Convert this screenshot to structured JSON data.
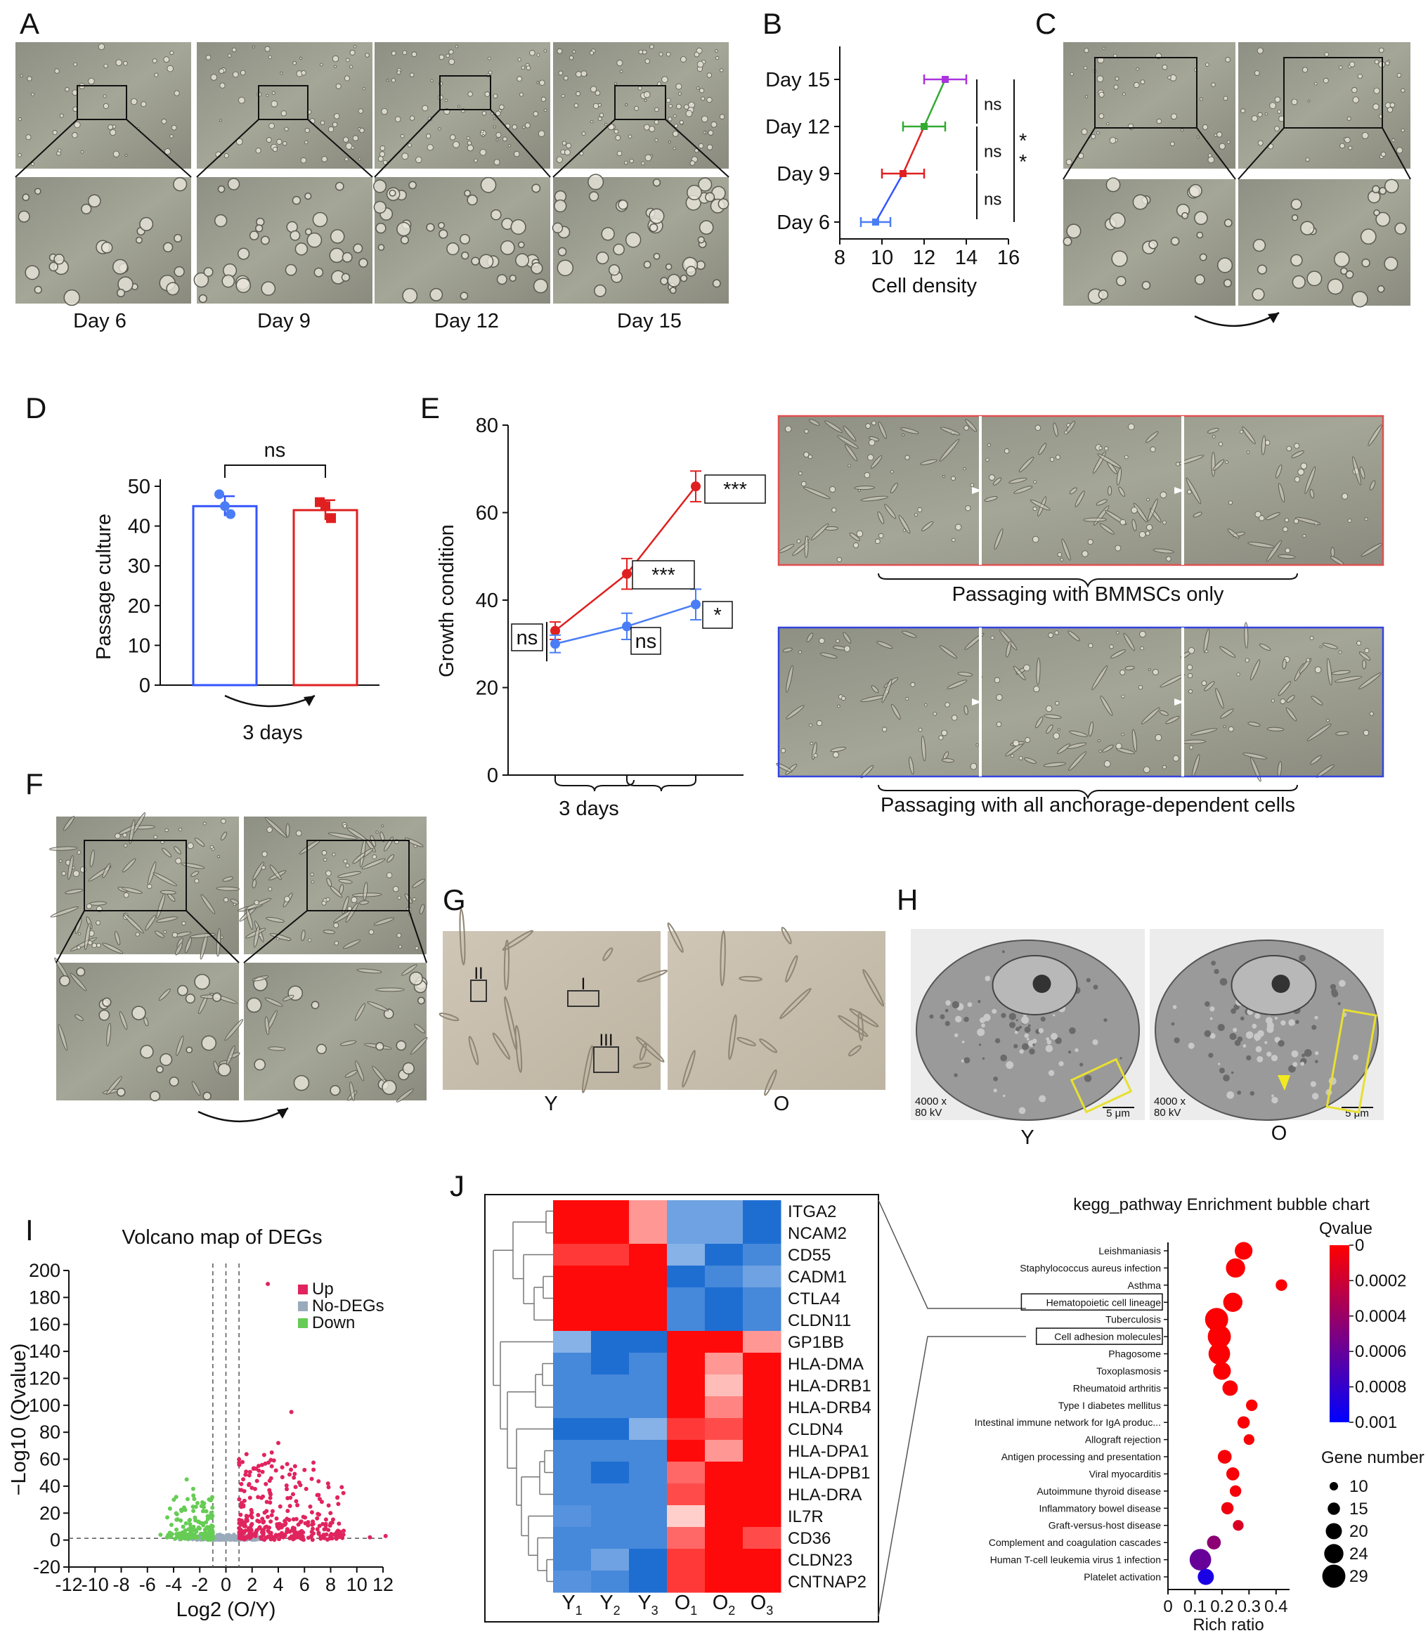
{
  "panels": {
    "A": {
      "label": "A",
      "captions": [
        "Day 6",
        "Day 9",
        "Day 12",
        "Day 15"
      ]
    },
    "B": {
      "label": "B"
    },
    "C": {
      "label": "C"
    },
    "D": {
      "label": "D"
    },
    "E": {
      "label": "E",
      "legend_red": "Passaging with BMMSCs only",
      "legend_blue": "Passaging with all anchorage-dependent cells"
    },
    "F": {
      "label": "F"
    },
    "G": {
      "label": "G",
      "captions": [
        "Y",
        "O"
      ],
      "boxes": [
        "II",
        "I",
        "III"
      ]
    },
    "H": {
      "label": "H",
      "captions": [
        "Y",
        "O"
      ],
      "mag": "4000 x",
      "kv": "80 kV",
      "scale": "5 μm"
    },
    "I": {
      "label": "I"
    },
    "J": {
      "label": "J"
    }
  },
  "chart_data": [
    {
      "id": "B",
      "type": "scatter",
      "xlabel": "Cell density",
      "ylabel": "",
      "xlim": [
        8,
        16
      ],
      "xticks": [
        8,
        10,
        12,
        14,
        16
      ],
      "categories": [
        "Day 6",
        "Day 9",
        "Day 12",
        "Day 15"
      ],
      "points": [
        {
          "category": "Day 6",
          "x": 9.7,
          "err": 0.7,
          "color": "#4a7df5"
        },
        {
          "category": "Day 9",
          "x": 11.0,
          "err": 1.0,
          "color": "#e02020"
        },
        {
          "category": "Day 12",
          "x": 12.0,
          "err": 1.0,
          "color": "#33aa33"
        },
        {
          "category": "Day 15",
          "x": 13.0,
          "err": 1.0,
          "color": "#aa33dd"
        }
      ],
      "segments": [
        {
          "from": "Day 6",
          "to": "Day 9",
          "color": "#3355ff"
        },
        {
          "from": "Day 9",
          "to": "Day 12",
          "color": "#e02020"
        },
        {
          "from": "Day 12",
          "to": "Day 15",
          "color": "#33aa33"
        }
      ],
      "annotations": [
        "ns",
        "ns",
        "ns",
        "**"
      ]
    },
    {
      "id": "D",
      "type": "bar",
      "ylabel": "Passage culture",
      "xlabel": "3 days",
      "ylim": [
        0,
        50
      ],
      "yticks": [
        0,
        10,
        20,
        30,
        40,
        50
      ],
      "series": [
        {
          "color": "#3355ff",
          "mean": 45,
          "err": 2.5,
          "points": [
            48,
            45,
            43
          ]
        },
        {
          "color": "#e02020",
          "mean": 44,
          "err": 2.5,
          "points": [
            46,
            45,
            42
          ]
        }
      ],
      "annotation": "ns"
    },
    {
      "id": "E",
      "type": "line",
      "ylabel": "Growth condition",
      "xlabel": "3 days",
      "ylim": [
        0,
        80
      ],
      "yticks": [
        0,
        20,
        40,
        60,
        80
      ],
      "series": [
        {
          "color": "#e02020",
          "values": [
            33,
            46,
            66
          ],
          "err": [
            2,
            3.5,
            3.5
          ]
        },
        {
          "color": "#4a7df5",
          "values": [
            30,
            34,
            39
          ],
          "err": [
            2,
            3,
            3.5
          ]
        }
      ],
      "annotations": {
        "left": "ns",
        "mid_red": "***",
        "mid_blue": "ns",
        "end_red": "***",
        "end_blue": "*"
      }
    },
    {
      "id": "I",
      "type": "scatter",
      "title": "Volcano map of DEGs",
      "xlabel": "Log2 (O/Y)",
      "ylabel": "−Log10 (Qvalue)",
      "xlim": [
        -12,
        12
      ],
      "ylim": [
        -20,
        200
      ],
      "xticks": [
        -12,
        -10,
        -8,
        -6,
        -4,
        -2,
        0,
        2,
        4,
        6,
        8,
        10,
        12
      ],
      "yticks": [
        -20,
        0,
        20,
        40,
        60,
        80,
        100,
        120,
        140,
        160,
        180,
        200
      ],
      "legend": [
        {
          "name": "Up",
          "color": "#e0245e"
        },
        {
          "name": "No-DEGs",
          "color": "#99aabb"
        },
        {
          "name": "Down",
          "color": "#66cc55"
        }
      ]
    },
    {
      "id": "J-heatmap",
      "type": "heatmap",
      "columns": [
        "Y",
        "Y",
        "Y",
        "O",
        "O",
        "O"
      ],
      "column_subscripts": [
        "1",
        "2",
        "3",
        "1",
        "2",
        "3"
      ],
      "rows": [
        "ITGA2",
        "NCAM2",
        "CD55",
        "CADM1",
        "CTLA4",
        "CLDN11",
        "GP1BB",
        "HLA-DMA",
        "HLA-DRB1",
        "HLA-DRB4",
        "CLDN4",
        "HLA-DPA1",
        "HLA-DPB1",
        "HLA-DRA",
        "IL7R",
        "CD36",
        "CLDN23",
        "CNTNAP2"
      ],
      "values": [
        [
          2.5,
          2.5,
          1.0,
          -1.5,
          -1.5,
          -2.5
        ],
        [
          2.5,
          2.5,
          1.0,
          -1.5,
          -1.5,
          -2.5
        ],
        [
          2.0,
          2.0,
          2.5,
          -1.2,
          -2.5,
          -2.0
        ],
        [
          2.5,
          2.5,
          2.5,
          -2.5,
          -2.0,
          -1.5
        ],
        [
          2.5,
          2.5,
          2.5,
          -2.0,
          -2.5,
          -2.0
        ],
        [
          2.5,
          2.5,
          2.5,
          -2.0,
          -2.5,
          -2.0
        ],
        [
          -1.2,
          -2.5,
          -2.5,
          2.5,
          2.5,
          1.0
        ],
        [
          -2.0,
          -2.5,
          -2.0,
          2.5,
          1.0,
          2.5
        ],
        [
          -2.0,
          -2.0,
          -2.0,
          2.5,
          0.6,
          2.5
        ],
        [
          -2.0,
          -2.0,
          -2.0,
          2.5,
          1.2,
          2.5
        ],
        [
          -2.5,
          -2.5,
          -1.2,
          2.0,
          1.8,
          2.5
        ],
        [
          -2.0,
          -2.0,
          -2.0,
          2.5,
          1.0,
          2.5
        ],
        [
          -2.0,
          -2.5,
          -2.0,
          1.5,
          2.5,
          2.5
        ],
        [
          -2.0,
          -2.0,
          -2.0,
          1.8,
          2.5,
          2.5
        ],
        [
          -1.8,
          -2.0,
          -2.0,
          0.4,
          2.5,
          2.5
        ],
        [
          -2.0,
          -2.0,
          -2.0,
          1.5,
          2.5,
          1.8
        ],
        [
          -2.0,
          -1.5,
          -2.5,
          2.0,
          2.5,
          2.5
        ],
        [
          -1.8,
          -2.0,
          -2.5,
          2.0,
          2.5,
          2.5
        ]
      ]
    },
    {
      "id": "J-bubble",
      "type": "scatter",
      "title": "kegg_pathway Enrichment bubble chart",
      "xlabel": "Rich ratio",
      "xlim": [
        0,
        0.45
      ],
      "xtick_labels": [
        "0",
        "0.1",
        "0.2",
        "0.3",
        "0.4"
      ],
      "xticks": [
        0,
        0.1,
        0.2,
        0.3,
        0.4
      ],
      "color_legend_title": "Qvalue",
      "color_ticks": [
        "0",
        "0.0002",
        "0.0004",
        "0.0006",
        "0.0008",
        "0.001"
      ],
      "size_legend_title": "Gene number",
      "size_ticks": [
        10,
        15,
        20,
        24,
        29
      ],
      "boxed_terms": [
        "Hematopoietic cell lineage",
        "Cell adhesion molecules"
      ],
      "terms": [
        {
          "name": "Leishmaniasis",
          "ratio": 0.28,
          "q": 1e-05,
          "genes": 22
        },
        {
          "name": "Staphylococcus aureus infection",
          "ratio": 0.25,
          "q": 1e-05,
          "genes": 24
        },
        {
          "name": "Asthma",
          "ratio": 0.42,
          "q": 1e-05,
          "genes": 14
        },
        {
          "name": "Hematopoietic cell lineage",
          "ratio": 0.24,
          "q": 1e-05,
          "genes": 24
        },
        {
          "name": "Tuberculosis",
          "ratio": 0.18,
          "q": 1e-05,
          "genes": 29
        },
        {
          "name": "Cell adhesion molecules",
          "ratio": 0.19,
          "q": 1e-05,
          "genes": 29
        },
        {
          "name": "Phagosome",
          "ratio": 0.19,
          "q": 1e-05,
          "genes": 27
        },
        {
          "name": "Toxoplasmosis",
          "ratio": 0.2,
          "q": 1e-05,
          "genes": 22
        },
        {
          "name": "Rheumatoid arthritis",
          "ratio": 0.23,
          "q": 2e-05,
          "genes": 19
        },
        {
          "name": "Type I diabetes mellitus",
          "ratio": 0.31,
          "q": 1e-05,
          "genes": 14
        },
        {
          "name": "Intestinal immune network for IgA produc...",
          "ratio": 0.28,
          "q": 2e-05,
          "genes": 15
        },
        {
          "name": "Allograft rejection",
          "ratio": 0.3,
          "q": 2e-05,
          "genes": 13
        },
        {
          "name": "Antigen processing and presentation",
          "ratio": 0.21,
          "q": 3e-05,
          "genes": 17
        },
        {
          "name": "Viral myocarditis",
          "ratio": 0.24,
          "q": 3e-05,
          "genes": 16
        },
        {
          "name": "Autoimmune thyroid disease",
          "ratio": 0.25,
          "q": 4e-05,
          "genes": 14
        },
        {
          "name": "Inflammatory bowel disease",
          "ratio": 0.22,
          "q": 6e-05,
          "genes": 15
        },
        {
          "name": "Graft-versus-host disease",
          "ratio": 0.26,
          "q": 0.00015,
          "genes": 13
        },
        {
          "name": "Complement and coagulation cascades",
          "ratio": 0.17,
          "q": 0.00045,
          "genes": 17
        },
        {
          "name": "Human T-cell leukemia virus 1 infection",
          "ratio": 0.12,
          "q": 0.0006,
          "genes": 27
        },
        {
          "name": "Platelet activation",
          "ratio": 0.14,
          "q": 0.0009,
          "genes": 20
        }
      ]
    }
  ],
  "colors": {
    "red": "#e02020",
    "blue": "#3355ff",
    "lightblue": "#4a7df5",
    "up": "#e0245e",
    "down": "#66cc55",
    "nodeg": "#99aabb"
  }
}
